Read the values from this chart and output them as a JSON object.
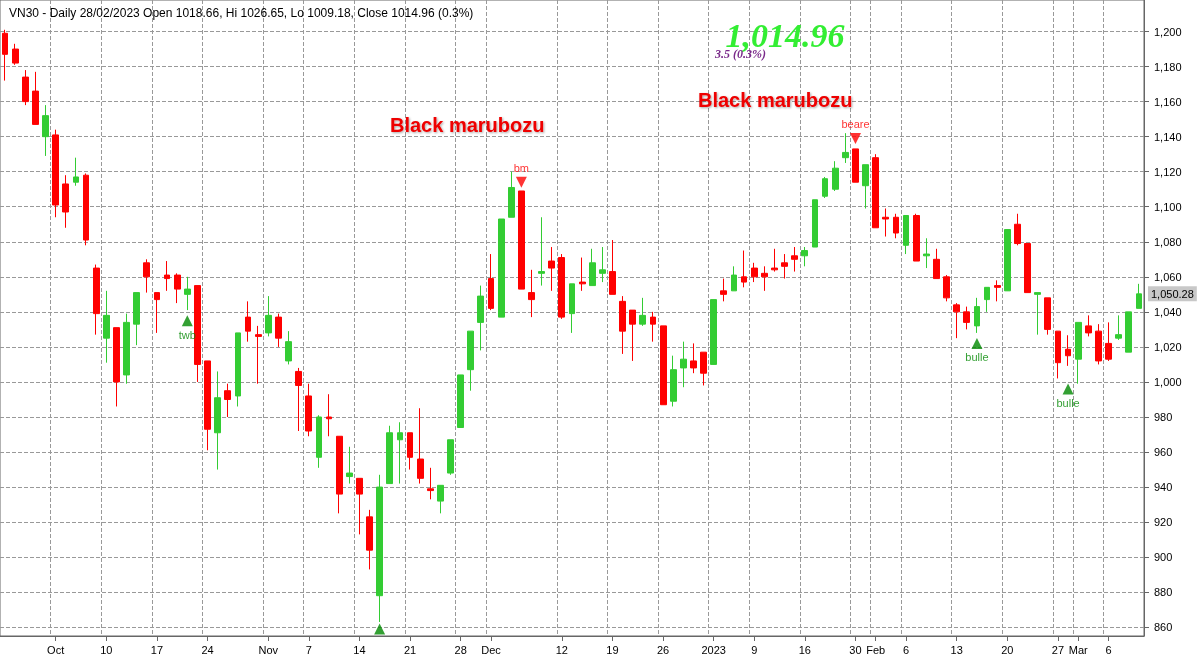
{
  "chart_data": {
    "type": "candlestick",
    "title": "VN30 - Daily 28/02/2023 Open 1018.66, Hi 1026.65, Lo 1009.18, Close 1014.96 (0.3%)",
    "annotations": [
      "1,014.96",
      "3.5 (0.3%)",
      "Black marubozu",
      "Black marubozu",
      "1,050.28"
    ],
    "categories": [
      null,
      null,
      null,
      null,
      null,
      "Oct",
      null,
      null,
      null,
      null,
      "10",
      null,
      null,
      null,
      null,
      "17",
      null,
      null,
      null,
      null,
      "24",
      null,
      null,
      null,
      null,
      null,
      "Nov",
      null,
      null,
      null,
      "7",
      null,
      null,
      null,
      null,
      "14",
      null,
      null,
      null,
      null,
      "21",
      null,
      null,
      null,
      null,
      "28",
      null,
      null,
      "Dec",
      null,
      null,
      null,
      null,
      null,
      null,
      "12",
      null,
      null,
      null,
      null,
      "19",
      null,
      null,
      null,
      null,
      "26",
      null,
      null,
      null,
      null,
      "2023",
      null,
      null,
      null,
      "9",
      null,
      null,
      null,
      null,
      "16",
      null,
      null,
      null,
      null,
      "30",
      null,
      "Feb",
      null,
      null,
      "6",
      null,
      null,
      null,
      null,
      "13",
      null,
      null,
      null,
      null,
      "20",
      null,
      null,
      null,
      null,
      "27",
      null,
      "Mar",
      null,
      null,
      "6",
      null,
      null,
      null
    ],
    "ylim": [
      855,
      1218
    ],
    "yticks": [
      {
        "value": 860,
        "label": "860"
      },
      {
        "value": 880,
        "label": "880"
      },
      {
        "value": 900,
        "label": "900"
      },
      {
        "value": 920,
        "label": "920"
      },
      {
        "value": 940,
        "label": "940"
      },
      {
        "value": 960,
        "label": "960"
      },
      {
        "value": 980,
        "label": "980"
      },
      {
        "value": 1000,
        "label": "1,000"
      },
      {
        "value": 1020,
        "label": "1,020"
      },
      {
        "value": 1040,
        "label": "1,040"
      },
      {
        "value": 1060,
        "label": "1,060"
      },
      {
        "value": 1080,
        "label": "1,080"
      },
      {
        "value": 1100,
        "label": "1,100"
      },
      {
        "value": 1120,
        "label": "1,120"
      },
      {
        "value": 1140,
        "label": "1,140"
      },
      {
        "value": 1160,
        "label": "1,160"
      },
      {
        "value": 1180,
        "label": "1,180"
      },
      {
        "value": 1200,
        "label": "1,200"
      }
    ],
    "grid": true,
    "marker": "triangle",
    "series": [
      {
        "ohlc": [
          [
            1199,
            1201,
            1172,
            1187
          ],
          [
            1190,
            1193,
            1181,
            1182
          ],
          [
            1174,
            1178,
            1158,
            1160
          ],
          [
            1166,
            1177,
            1147,
            1147
          ],
          [
            1140,
            1158,
            1129,
            1152
          ],
          [
            1141,
            1144,
            1094,
            1101
          ],
          [
            1113,
            1118,
            1088,
            1097
          ],
          [
            1114,
            1128,
            1112,
            1117
          ],
          [
            1118,
            1119,
            1078,
            1081
          ],
          [
            1065,
            1067,
            1027,
            1039
          ],
          [
            1025,
            1052,
            1011,
            1038
          ],
          [
            1031,
            1031,
            986,
            1000
          ],
          [
            1004,
            1039,
            999,
            1034
          ],
          [
            1033,
            1051,
            1021,
            1051
          ],
          [
            1068,
            1070,
            1051,
            1060
          ],
          [
            1051,
            1051,
            1028,
            1047
          ],
          [
            1061,
            1069,
            1052,
            1059
          ],
          [
            1061,
            1062,
            1045,
            1053
          ],
          [
            1050,
            1060,
            1041,
            1053
          ],
          [
            1055,
            1055,
            1000,
            1010
          ],
          [
            1012,
            1012,
            961,
            973
          ],
          [
            971,
            1006,
            950,
            991
          ],
          [
            995,
            999,
            980,
            990
          ],
          [
            992,
            1028,
            986,
            1028
          ],
          [
            1037,
            1046,
            1023,
            1029
          ],
          [
            1027,
            1032,
            999,
            1026
          ],
          [
            1028,
            1049,
            1026,
            1038
          ],
          [
            1037,
            1039,
            1020,
            1025
          ],
          [
            1012,
            1029,
            1010,
            1023
          ],
          [
            1006,
            1008,
            972,
            998
          ],
          [
            992,
            999,
            969,
            972
          ],
          [
            957,
            981,
            951,
            980
          ],
          [
            980,
            993,
            969,
            979
          ],
          [
            969,
            969,
            925,
            936
          ],
          [
            946,
            963,
            942,
            948
          ],
          [
            945,
            945,
            913,
            936
          ],
          [
            923,
            927,
            893,
            904
          ],
          [
            878,
            947,
            863,
            940
          ],
          [
            942,
            975,
            942,
            971
          ],
          [
            967,
            977,
            942,
            971
          ],
          [
            971,
            971,
            950,
            957
          ],
          [
            956,
            985,
            942,
            945
          ],
          [
            939,
            951,
            933,
            938
          ],
          [
            932,
            941,
            925,
            941
          ],
          [
            948,
            967,
            947,
            967
          ],
          [
            974,
            1004,
            974,
            1004
          ],
          [
            1007,
            1029,
            995,
            1029
          ],
          [
            1034,
            1055,
            1018,
            1049
          ],
          [
            1059,
            1073,
            1041,
            1042
          ],
          [
            1037,
            1093,
            1037,
            1093
          ],
          [
            1094,
            1120,
            1094,
            1111
          ],
          [
            1109,
            1109,
            1053,
            1053
          ],
          [
            1051,
            1064,
            1037,
            1047
          ],
          [
            1062,
            1094,
            1055,
            1063
          ],
          [
            1069,
            1077,
            1052,
            1065
          ],
          [
            1071,
            1073,
            1036,
            1037
          ],
          [
            1039,
            1056,
            1028,
            1056
          ],
          [
            1057,
            1071,
            1052,
            1056
          ],
          [
            1055,
            1076,
            1055,
            1068
          ],
          [
            1062,
            1077,
            1057,
            1064
          ],
          [
            1063,
            1081,
            1050,
            1050
          ],
          [
            1046,
            1049,
            1016,
            1029
          ],
          [
            1041,
            1041,
            1012,
            1033
          ],
          [
            1033,
            1048,
            1032,
            1038
          ],
          [
            1037,
            1040,
            1023,
            1033
          ],
          [
            1032,
            1032,
            987,
            987
          ],
          [
            989,
            1015,
            986,
            1007
          ],
          [
            1008,
            1023,
            997,
            1013
          ],
          [
            1012,
            1022,
            1005,
            1008
          ],
          [
            1017,
            1017,
            998,
            1005
          ],
          [
            1010,
            1047,
            1010,
            1047
          ],
          [
            1052,
            1059,
            1046,
            1050
          ],
          [
            1052,
            1066,
            1052,
            1061
          ],
          [
            1060,
            1075,
            1054,
            1057
          ],
          [
            1065,
            1068,
            1057,
            1060
          ],
          [
            1062,
            1066,
            1052,
            1060
          ],
          [
            1065,
            1076,
            1063,
            1064
          ],
          [
            1068,
            1073,
            1059,
            1066
          ],
          [
            1072,
            1077,
            1063,
            1070
          ],
          [
            1072,
            1077,
            1066,
            1075
          ],
          [
            1077,
            1104,
            1077,
            1104
          ],
          [
            1106,
            1117,
            1105,
            1116
          ],
          [
            1110,
            1126,
            1109,
            1122
          ],
          [
            1128,
            1142,
            1125,
            1131
          ],
          [
            1133,
            1133,
            1114,
            1114
          ],
          [
            1112,
            1124,
            1099,
            1124
          ],
          [
            1128,
            1130,
            1088,
            1088
          ],
          [
            1094,
            1099,
            1083,
            1093
          ],
          [
            1094,
            1096,
            1082,
            1085
          ],
          [
            1078,
            1095,
            1073,
            1095
          ],
          [
            1095,
            1096,
            1069,
            1069
          ],
          [
            1072,
            1082,
            1065,
            1073
          ],
          [
            1070,
            1076,
            1059,
            1059
          ],
          [
            1060,
            1061,
            1046,
            1048
          ],
          [
            1044,
            1045,
            1025,
            1040
          ],
          [
            1040,
            1043,
            1030,
            1034
          ],
          [
            1032,
            1048,
            1028,
            1043
          ],
          [
            1047,
            1054,
            1040,
            1054
          ],
          [
            1055,
            1058,
            1046,
            1054
          ],
          [
            1052,
            1087,
            1052,
            1087
          ],
          [
            1090,
            1096,
            1078,
            1079
          ],
          [
            1079,
            1079,
            1051,
            1051
          ],
          [
            1050,
            1051,
            1027,
            1051
          ],
          [
            1048,
            1048,
            1027,
            1030
          ],
          [
            1029,
            1029,
            1002,
            1011
          ],
          [
            1018.66,
            1026.65,
            1009.18,
            1014.96
          ],
          [
            1013,
            1034,
            999,
            1034
          ],
          [
            1032,
            1038,
            1026,
            1028
          ],
          [
            1029,
            1033,
            1010,
            1012
          ],
          [
            1022,
            1034,
            1012,
            1013
          ],
          [
            1025,
            1038,
            1024,
            1027
          ],
          [
            1017,
            1040,
            1017,
            1040
          ],
          [
            1042,
            1056,
            1042,
            1050.28
          ]
        ],
        "colors": [
          "#ff0000",
          "#ff0000",
          "#ff0000",
          "#ff0000",
          "#33cc33",
          "#ff0000",
          "#ff0000",
          "#33cc33",
          "#ff0000",
          "#ff0000",
          "#33cc33",
          "#ff0000",
          "#33cc33",
          "#33cc33",
          "#ff0000",
          "#ff0000",
          "#ff0000",
          "#ff0000",
          "#33cc33",
          "#ff0000",
          "#ff0000",
          "#33cc33",
          "#ff0000",
          "#33cc33",
          "#ff0000",
          "#ff0000",
          "#33cc33",
          "#ff0000",
          "#33cc33",
          "#ff0000",
          "#ff0000",
          "#33cc33",
          "#ff0000",
          "#ff0000",
          "#33cc33",
          "#ff0000",
          "#ff0000",
          "#33cc33",
          "#33cc33",
          "#33cc33",
          "#ff0000",
          "#ff0000",
          "#ff0000",
          "#33cc33",
          "#33cc33",
          "#33cc33",
          "#33cc33",
          "#33cc33",
          "#ff0000",
          "#33cc33",
          "#33cc33",
          "#ff0000",
          "#ff0000",
          "#33cc33",
          "#ff0000",
          "#ff0000",
          "#33cc33",
          "#ff0000",
          "#33cc33",
          "#33cc33",
          "#ff0000",
          "#ff0000",
          "#ff0000",
          "#33cc33",
          "#ff0000",
          "#ff0000",
          "#33cc33",
          "#33cc33",
          "#ff0000",
          "#ff0000",
          "#33cc33",
          "#ff0000",
          "#33cc33",
          "#ff0000",
          "#ff0000",
          "#ff0000",
          "#ff0000",
          "#ff0000",
          "#ff0000",
          "#33cc33",
          "#33cc33",
          "#33cc33",
          "#33cc33",
          "#33cc33",
          "#ff0000",
          "#33cc33",
          "#ff0000",
          "#ff0000",
          "#ff0000",
          "#33cc33",
          "#ff0000",
          "#33cc33",
          "#ff0000",
          "#ff0000",
          "#ff0000",
          "#ff0000",
          "#33cc33",
          "#33cc33",
          "#ff0000",
          "#33cc33",
          "#ff0000",
          "#ff0000",
          "#33cc33",
          "#ff0000",
          "#ff0000",
          "#ff0000",
          "#33cc33",
          "#ff0000",
          "#ff0000",
          "#ff0000",
          "#33cc33",
          "#33cc33",
          "#33cc33"
        ]
      },
      {
        "type": "scatter",
        "color": "#008800",
        "values": [
          null,
          null,
          null,
          null,
          null,
          null,
          null,
          null,
          null,
          null,
          null,
          null,
          null,
          null,
          null,
          null,
          null,
          null,
          1035,
          null,
          null,
          null,
          null,
          null,
          null,
          null,
          null,
          null,
          null,
          null,
          null,
          null,
          null,
          null,
          null,
          null,
          null,
          859,
          null,
          null,
          null,
          null,
          null,
          null,
          null,
          null,
          null,
          null,
          null,
          null,
          null,
          null,
          null,
          null,
          null,
          null,
          null,
          null,
          null,
          null,
          null,
          null,
          null,
          null,
          null,
          null,
          null,
          null,
          null,
          null,
          null,
          null,
          null,
          null,
          null,
          null,
          null,
          null,
          null,
          null,
          null,
          null,
          null,
          null,
          null,
          null,
          null,
          null,
          null,
          null,
          null,
          null,
          null,
          null,
          null,
          null,
          1022,
          null,
          null,
          null,
          null,
          null,
          null,
          null,
          null,
          996,
          null,
          null,
          null,
          null,
          null,
          null,
          null
        ],
        "value_labels": [
          null,
          null,
          null,
          null,
          null,
          null,
          null,
          null,
          null,
          null,
          null,
          null,
          null,
          null,
          null,
          null,
          null,
          null,
          "twb",
          null,
          null,
          null,
          null,
          null,
          null,
          null,
          null,
          null,
          null,
          null,
          null,
          null,
          null,
          null,
          null,
          null,
          null,
          null,
          null,
          null,
          null,
          null,
          null,
          null,
          null,
          null,
          null,
          null,
          null,
          null,
          null,
          null,
          null,
          null,
          null,
          null,
          null,
          null,
          null,
          null,
          null,
          null,
          null,
          null,
          null,
          null,
          null,
          null,
          null,
          null,
          null,
          null,
          null,
          null,
          null,
          null,
          null,
          null,
          null,
          null,
          null,
          null,
          null,
          null,
          null,
          null,
          null,
          null,
          null,
          null,
          null,
          null,
          null,
          null,
          null,
          null,
          "bulle",
          null,
          null,
          null,
          null,
          null,
          null,
          null,
          null,
          "bulle",
          null,
          null,
          null,
          null,
          null,
          null,
          null
        ]
      },
      {
        "type": "scatter",
        "color": "#ff0000",
        "values": [
          null,
          null,
          null,
          null,
          null,
          null,
          null,
          null,
          null,
          null,
          null,
          null,
          null,
          null,
          null,
          null,
          null,
          null,
          null,
          null,
          null,
          null,
          null,
          null,
          null,
          null,
          null,
          null,
          null,
          null,
          null,
          null,
          null,
          null,
          null,
          null,
          null,
          null,
          null,
          null,
          null,
          null,
          null,
          null,
          null,
          null,
          null,
          null,
          null,
          null,
          null,
          1114,
          null,
          null,
          null,
          null,
          null,
          null,
          null,
          null,
          null,
          null,
          null,
          null,
          null,
          null,
          null,
          null,
          null,
          null,
          null,
          null,
          null,
          null,
          null,
          null,
          null,
          null,
          null,
          null,
          null,
          null,
          null,
          null,
          1139,
          null,
          null,
          null,
          null,
          null,
          null,
          null,
          null,
          null,
          null,
          null,
          null,
          null,
          null,
          null,
          null,
          null,
          null,
          null,
          null,
          null,
          null,
          null,
          null,
          null,
          null,
          null,
          null
        ],
        "value_labels": [
          null,
          null,
          null,
          null,
          null,
          null,
          null,
          null,
          null,
          null,
          null,
          null,
          null,
          null,
          null,
          null,
          null,
          null,
          null,
          null,
          null,
          null,
          null,
          null,
          null,
          null,
          null,
          null,
          null,
          null,
          null,
          null,
          null,
          null,
          null,
          null,
          null,
          null,
          null,
          null,
          null,
          null,
          null,
          null,
          null,
          null,
          null,
          null,
          null,
          null,
          null,
          "bm",
          null,
          null,
          null,
          null,
          null,
          null,
          null,
          null,
          null,
          null,
          null,
          null,
          null,
          null,
          null,
          null,
          null,
          null,
          null,
          null,
          null,
          null,
          null,
          null,
          null,
          null,
          null,
          null,
          null,
          null,
          null,
          null,
          "beare",
          null,
          null,
          null,
          null,
          null,
          null,
          null,
          null,
          null,
          null,
          null,
          null,
          null,
          null,
          null,
          null,
          null,
          null,
          null,
          null,
          null,
          null,
          null,
          null,
          null,
          null,
          null,
          null
        ]
      }
    ]
  }
}
